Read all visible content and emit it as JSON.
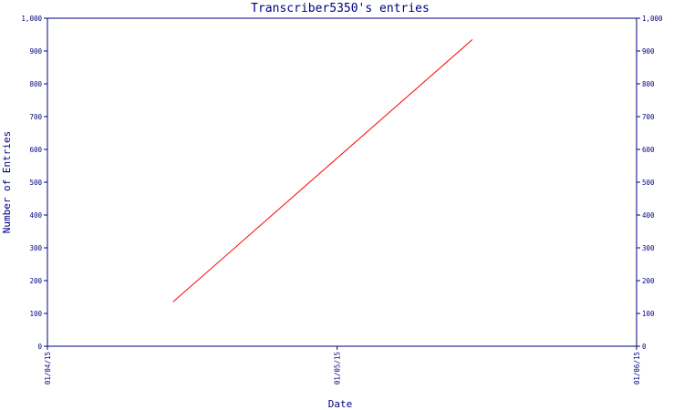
{
  "colors": {
    "axis": "#000080",
    "text": "#000080",
    "series": "#ff0000",
    "background": "#ffffff"
  },
  "chart_data": {
    "type": "line",
    "title": "Transcriber5350's entries",
    "xlabel": "Date",
    "ylabel": "Number of Entries",
    "x_tick_labels": [
      "01/04/15",
      "01/05/15",
      "01/06/15"
    ],
    "x_tick_dates": [
      "2015-04-01",
      "2015-05-01",
      "2015-06-01"
    ],
    "xlim": [
      "2015-04-01",
      "2015-06-01"
    ],
    "ylim": [
      0,
      1000
    ],
    "y_ticks": [
      0,
      100,
      200,
      300,
      400,
      500,
      600,
      700,
      800,
      900,
      1000
    ],
    "y_tick_labels": [
      "0",
      "100",
      "200",
      "300",
      "400",
      "500",
      "600",
      "700",
      "800",
      "900",
      "1,000"
    ],
    "secondary_y_axis": true,
    "grid": false,
    "series": [
      {
        "color": "#ff0000",
        "points": [
          {
            "x": "2015-04-14",
            "y": 135
          },
          {
            "x": "2015-05-15",
            "y": 935
          }
        ]
      }
    ]
  }
}
